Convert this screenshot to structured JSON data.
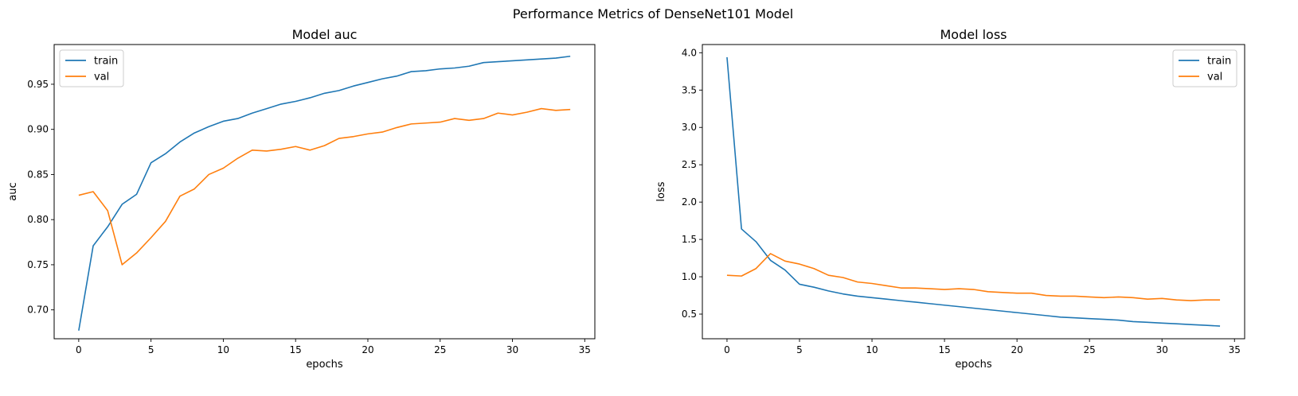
{
  "figure": {
    "suptitle": "Performance Metrics of DenseNet101 Model"
  },
  "colors": {
    "train": "#1f77b4",
    "val": "#ff7f0e",
    "axes": "#000000",
    "background": "#ffffff"
  },
  "chart_data": [
    {
      "type": "line",
      "title": "Model auc",
      "xlabel": "epochs",
      "ylabel": "auc",
      "xlim": [
        -1.7,
        35.7
      ],
      "ylim": [
        0.668,
        0.994
      ],
      "xticks": [
        0,
        5,
        10,
        15,
        20,
        25,
        30,
        35
      ],
      "yticks": [
        0.7,
        0.75,
        0.8,
        0.85,
        0.9,
        0.95
      ],
      "ytick_labels": [
        "0.70",
        "0.75",
        "0.80",
        "0.85",
        "0.90",
        "0.95"
      ],
      "legend_position": "top-left",
      "grid": false,
      "x": [
        0,
        1,
        2,
        3,
        4,
        5,
        6,
        7,
        8,
        9,
        10,
        11,
        12,
        13,
        14,
        15,
        16,
        17,
        18,
        19,
        20,
        21,
        22,
        23,
        24,
        25,
        26,
        27,
        28,
        29,
        30,
        31,
        32,
        33,
        34
      ],
      "series": [
        {
          "name": "train",
          "color": "#1f77b4",
          "values": [
            0.677,
            0.771,
            0.792,
            0.817,
            0.828,
            0.863,
            0.873,
            0.886,
            0.896,
            0.903,
            0.909,
            0.912,
            0.918,
            0.923,
            0.928,
            0.931,
            0.935,
            0.94,
            0.943,
            0.948,
            0.952,
            0.956,
            0.959,
            0.964,
            0.965,
            0.967,
            0.968,
            0.97,
            0.974,
            0.975,
            0.976,
            0.977,
            0.978,
            0.979,
            0.981
          ]
        },
        {
          "name": "val",
          "color": "#ff7f0e",
          "values": [
            0.827,
            0.831,
            0.81,
            0.75,
            0.763,
            0.78,
            0.798,
            0.826,
            0.834,
            0.85,
            0.857,
            0.868,
            0.877,
            0.876,
            0.878,
            0.881,
            0.877,
            0.882,
            0.89,
            0.892,
            0.895,
            0.897,
            0.902,
            0.906,
            0.907,
            0.908,
            0.912,
            0.91,
            0.912,
            0.918,
            0.916,
            0.919,
            0.923,
            0.921,
            0.922
          ]
        }
      ]
    },
    {
      "type": "line",
      "title": "Model loss",
      "xlabel": "epochs",
      "ylabel": "loss",
      "xlim": [
        -1.7,
        35.7
      ],
      "ylim": [
        0.17,
        4.11
      ],
      "xticks": [
        0,
        5,
        10,
        15,
        20,
        25,
        30,
        35
      ],
      "yticks": [
        0.5,
        1.0,
        1.5,
        2.0,
        2.5,
        3.0,
        3.5,
        4.0
      ],
      "ytick_labels": [
        "0.5",
        "1.0",
        "1.5",
        "2.0",
        "2.5",
        "3.0",
        "3.5",
        "4.0"
      ],
      "legend_position": "top-right",
      "grid": false,
      "x": [
        0,
        1,
        2,
        3,
        4,
        5,
        6,
        7,
        8,
        9,
        10,
        11,
        12,
        13,
        14,
        15,
        16,
        17,
        18,
        19,
        20,
        21,
        22,
        23,
        24,
        25,
        26,
        27,
        28,
        29,
        30,
        31,
        32,
        33,
        34
      ],
      "series": [
        {
          "name": "train",
          "color": "#1f77b4",
          "values": [
            3.94,
            1.64,
            1.47,
            1.22,
            1.09,
            0.9,
            0.86,
            0.81,
            0.77,
            0.74,
            0.72,
            0.7,
            0.68,
            0.66,
            0.64,
            0.62,
            0.6,
            0.58,
            0.56,
            0.54,
            0.52,
            0.5,
            0.48,
            0.46,
            0.45,
            0.44,
            0.43,
            0.42,
            0.4,
            0.39,
            0.38,
            0.37,
            0.36,
            0.35,
            0.34
          ]
        },
        {
          "name": "val",
          "color": "#ff7f0e",
          "values": [
            1.02,
            1.01,
            1.11,
            1.31,
            1.21,
            1.17,
            1.11,
            1.02,
            0.99,
            0.93,
            0.91,
            0.88,
            0.85,
            0.85,
            0.84,
            0.83,
            0.84,
            0.83,
            0.8,
            0.79,
            0.78,
            0.78,
            0.75,
            0.74,
            0.74,
            0.73,
            0.72,
            0.73,
            0.72,
            0.7,
            0.71,
            0.69,
            0.68,
            0.69,
            0.69
          ]
        }
      ]
    }
  ]
}
